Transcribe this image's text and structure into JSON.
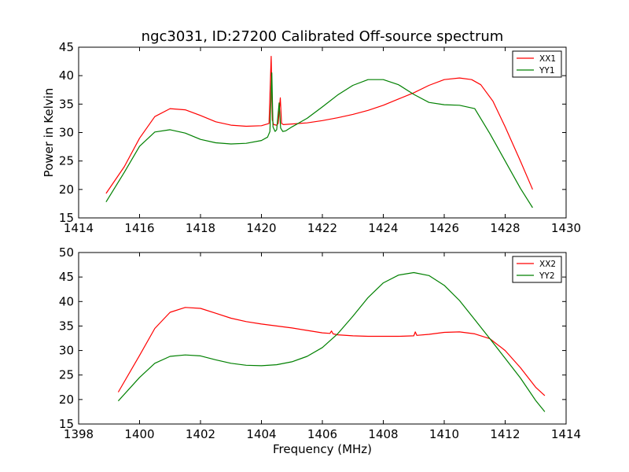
{
  "title": "ngc3031, ID:27200 Calibrated Off-source spectrum",
  "colors": {
    "XX": "#ff0000",
    "YY": "#008000"
  },
  "chart_data": [
    {
      "type": "line",
      "title": "ngc3031, ID:27200 Calibrated Off-source spectrum",
      "xlabel": "",
      "ylabel": "Power in Kelvin",
      "xlim": [
        1414,
        1430
      ],
      "ylim": [
        15,
        45
      ],
      "xticks": [
        1414,
        1416,
        1418,
        1420,
        1422,
        1424,
        1426,
        1428,
        1430
      ],
      "yticks": [
        15,
        20,
        25,
        30,
        35,
        40,
        45
      ],
      "grid": false,
      "legend": "top-right",
      "series": [
        {
          "name": "XX1",
          "color": "#ff0000",
          "x": [
            1414.9,
            1415.5,
            1416.0,
            1416.5,
            1417.0,
            1417.5,
            1418.0,
            1418.5,
            1419.0,
            1419.5,
            1420.0,
            1420.25,
            1420.32,
            1420.36,
            1420.4,
            1420.5,
            1420.55,
            1420.62,
            1420.66,
            1420.72,
            1421.0,
            1421.5,
            1422.0,
            1422.5,
            1423.0,
            1423.5,
            1424.0,
            1424.5,
            1425.0,
            1425.5,
            1426.0,
            1426.5,
            1426.9,
            1427.2,
            1427.6,
            1428.0,
            1428.5,
            1428.9
          ],
          "y": [
            19.3,
            24.0,
            29.0,
            32.8,
            34.2,
            34.0,
            33.0,
            31.9,
            31.3,
            31.1,
            31.2,
            31.6,
            43.4,
            32.2,
            31.4,
            31.3,
            31.6,
            36.1,
            31.6,
            31.4,
            31.5,
            31.7,
            32.1,
            32.6,
            33.2,
            33.9,
            34.8,
            35.9,
            37.0,
            38.3,
            39.3,
            39.6,
            39.3,
            38.4,
            35.5,
            31.0,
            25.0,
            20.0
          ]
        },
        {
          "name": "YY1",
          "color": "#008000",
          "x": [
            1414.9,
            1415.5,
            1416.0,
            1416.5,
            1417.0,
            1417.5,
            1418.0,
            1418.5,
            1419.0,
            1419.5,
            1420.0,
            1420.2,
            1420.28,
            1420.34,
            1420.38,
            1420.45,
            1420.5,
            1420.58,
            1420.63,
            1420.7,
            1420.8,
            1421.0,
            1421.5,
            1422.0,
            1422.5,
            1423.0,
            1423.5,
            1424.0,
            1424.5,
            1425.0,
            1425.5,
            1426.0,
            1426.5,
            1427.0,
            1427.5,
            1428.0,
            1428.5,
            1428.9
          ],
          "y": [
            17.8,
            23.0,
            27.6,
            30.1,
            30.5,
            29.9,
            28.8,
            28.2,
            28.0,
            28.1,
            28.6,
            29.2,
            30.2,
            40.5,
            31.0,
            30.2,
            30.5,
            35.2,
            30.8,
            30.2,
            30.3,
            31.0,
            32.5,
            34.5,
            36.6,
            38.3,
            39.3,
            39.3,
            38.4,
            36.7,
            35.3,
            34.9,
            34.8,
            34.2,
            29.8,
            25.0,
            20.2,
            16.8
          ]
        }
      ]
    },
    {
      "type": "line",
      "title": "",
      "xlabel": "Frequency (MHz)",
      "ylabel": "",
      "xlim": [
        1398,
        1414
      ],
      "ylim": [
        15,
        50
      ],
      "xticks": [
        1398,
        1400,
        1402,
        1404,
        1406,
        1408,
        1410,
        1412,
        1414
      ],
      "yticks": [
        15,
        20,
        25,
        30,
        35,
        40,
        45,
        50
      ],
      "grid": false,
      "legend": "top-right",
      "series": [
        {
          "name": "XX2",
          "color": "#ff0000",
          "x": [
            1399.3,
            1400.0,
            1400.5,
            1401.0,
            1401.5,
            1402.0,
            1402.5,
            1403.0,
            1403.5,
            1404.0,
            1404.5,
            1405.0,
            1405.5,
            1406.0,
            1406.25,
            1406.3,
            1406.35,
            1406.5,
            1407.0,
            1407.5,
            1408.0,
            1408.5,
            1409.0,
            1409.05,
            1409.1,
            1409.5,
            1410.0,
            1410.5,
            1411.0,
            1411.5,
            1412.0,
            1412.5,
            1413.0,
            1413.3
          ],
          "y": [
            21.5,
            29.0,
            34.5,
            37.8,
            38.8,
            38.6,
            37.6,
            36.6,
            35.9,
            35.4,
            35.0,
            34.6,
            34.1,
            33.6,
            33.5,
            34.0,
            33.4,
            33.2,
            33.0,
            32.9,
            32.9,
            32.9,
            33.0,
            33.8,
            33.1,
            33.3,
            33.7,
            33.8,
            33.4,
            32.4,
            30.0,
            26.5,
            22.5,
            20.8
          ]
        },
        {
          "name": "YY2",
          "color": "#008000",
          "x": [
            1399.3,
            1400.0,
            1400.5,
            1401.0,
            1401.5,
            1402.0,
            1402.5,
            1403.0,
            1403.5,
            1404.0,
            1404.5,
            1405.0,
            1405.5,
            1406.0,
            1406.5,
            1407.0,
            1407.5,
            1408.0,
            1408.5,
            1409.0,
            1409.5,
            1410.0,
            1410.5,
            1411.0,
            1411.5,
            1412.0,
            1412.5,
            1413.0,
            1413.3
          ],
          "y": [
            19.7,
            24.5,
            27.4,
            28.8,
            29.1,
            28.9,
            28.1,
            27.4,
            27.0,
            26.9,
            27.1,
            27.7,
            28.8,
            30.6,
            33.4,
            37.0,
            40.8,
            43.8,
            45.4,
            45.9,
            45.3,
            43.3,
            40.2,
            36.3,
            32.4,
            28.4,
            24.4,
            19.8,
            17.5
          ]
        }
      ]
    }
  ]
}
